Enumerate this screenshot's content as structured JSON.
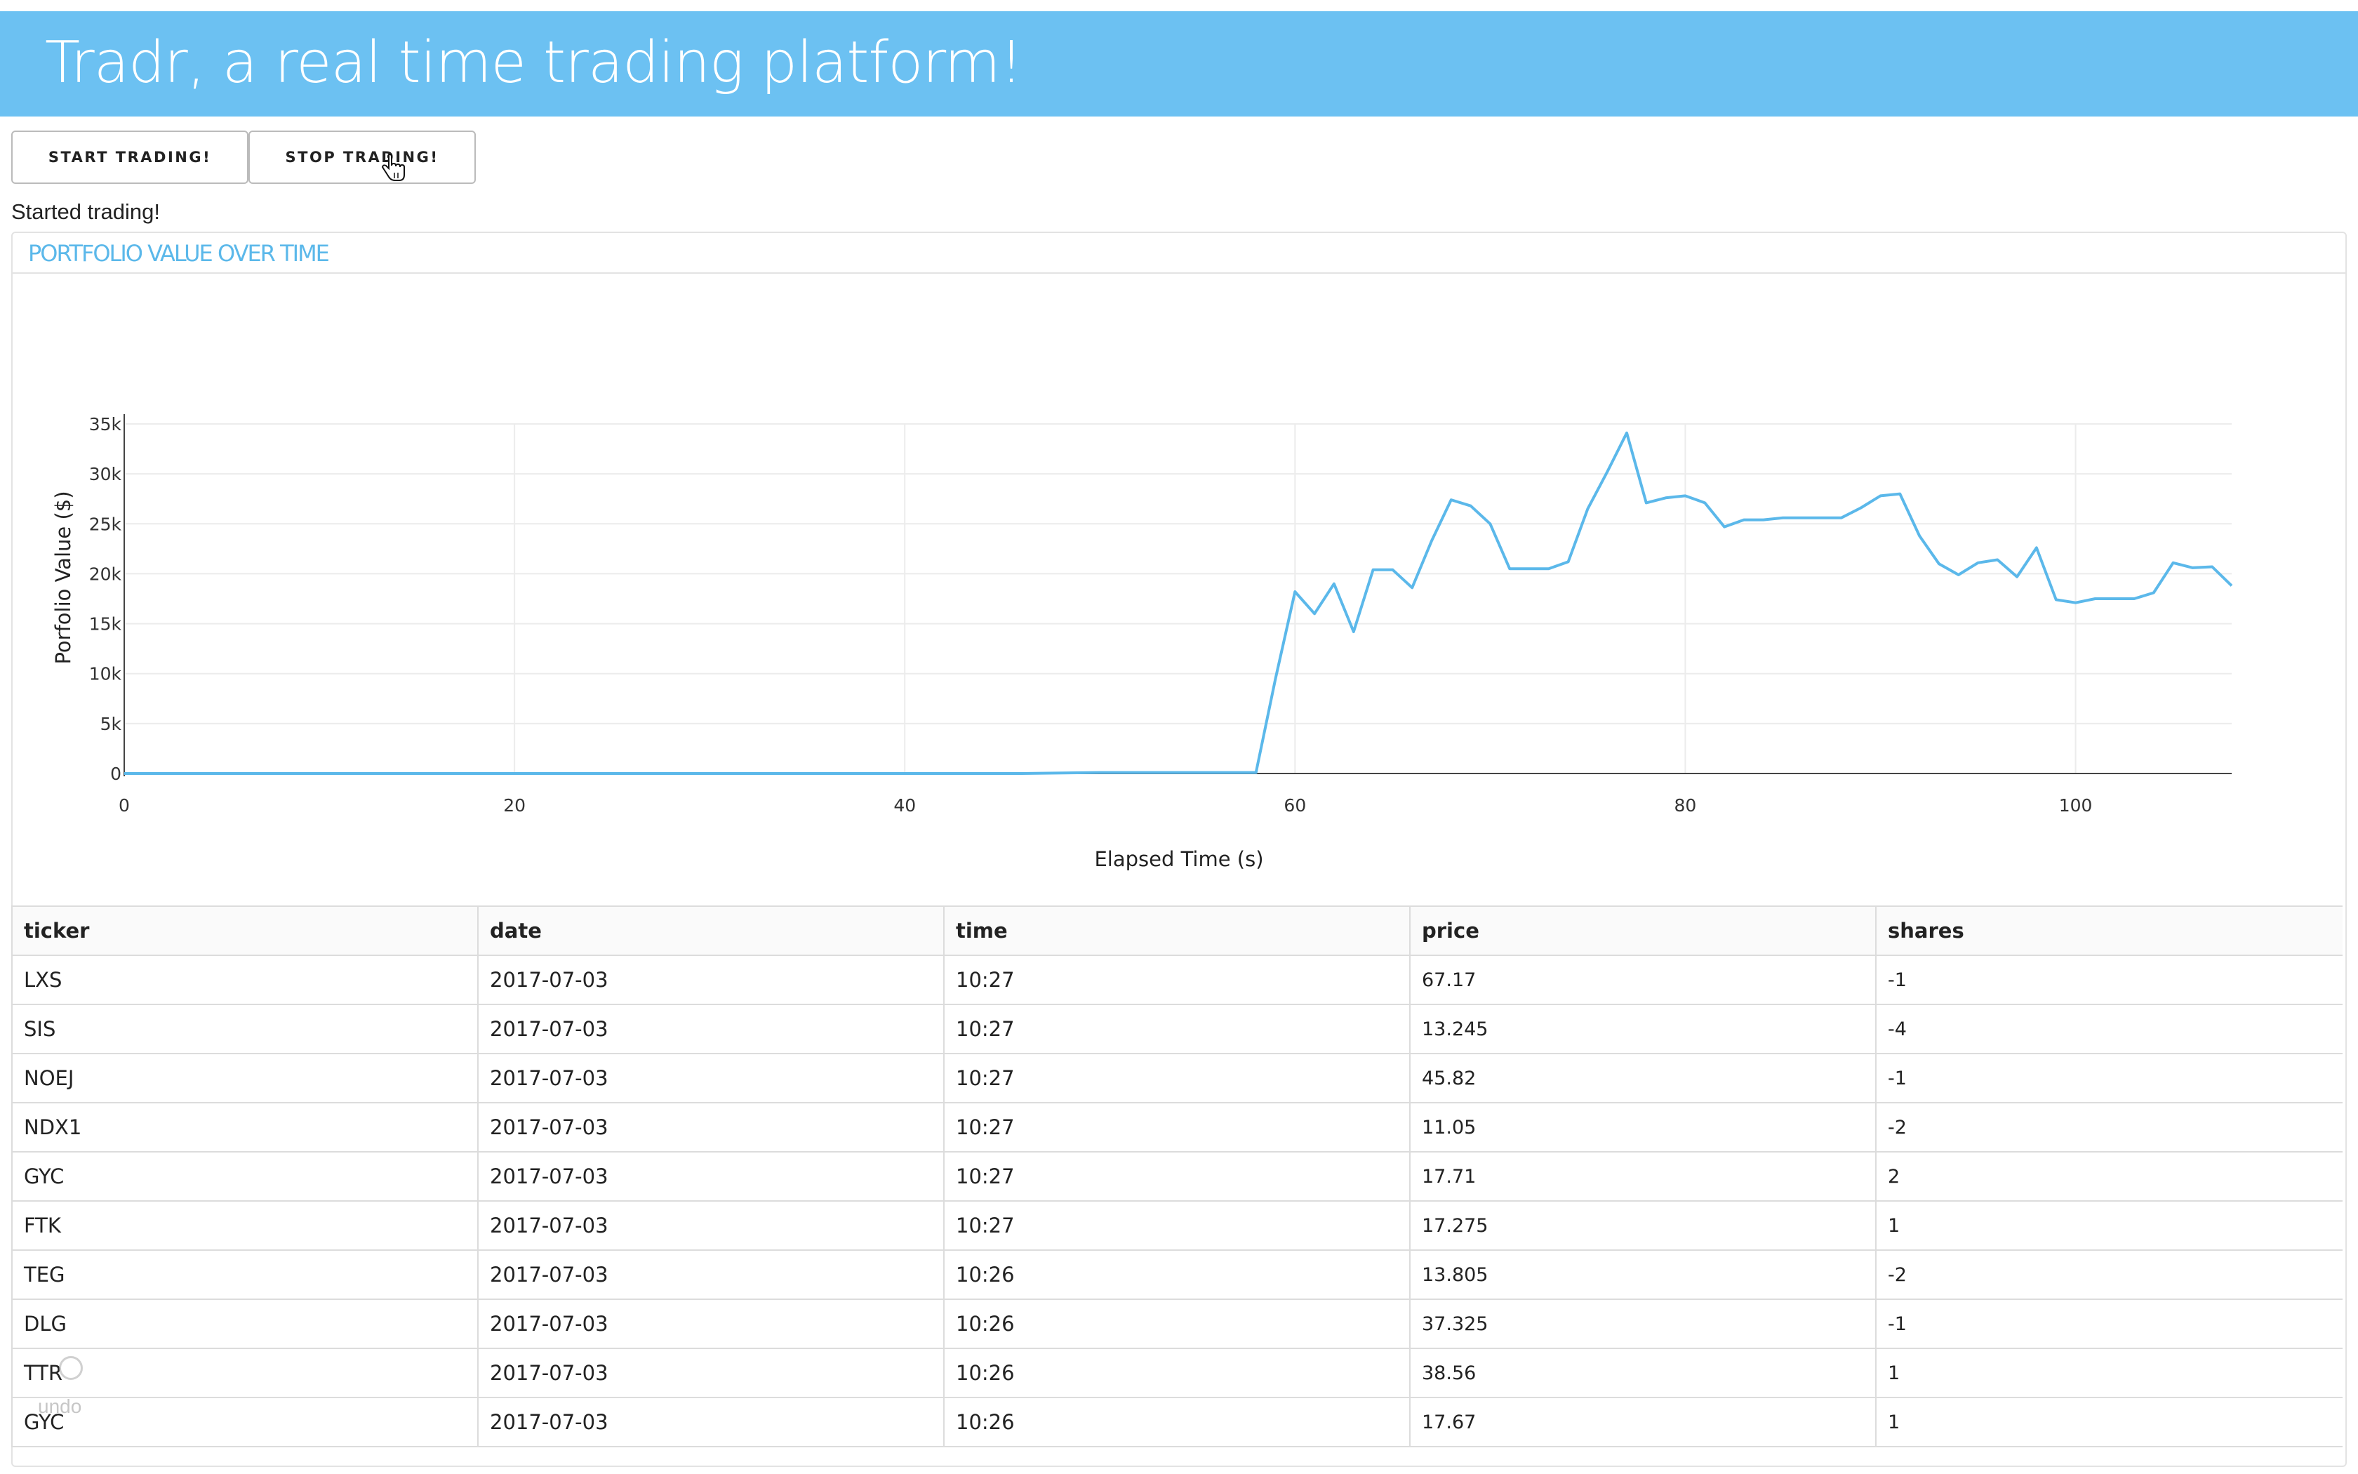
{
  "header": {
    "title": "Tradr, a real time trading platform!"
  },
  "controls": {
    "start_label": "START TRADING!",
    "stop_label": "STOP TRADING!"
  },
  "status": "Started trading!",
  "panel": {
    "title": "PORTFOLIO VALUE OVER TIME"
  },
  "undo": {
    "label": "undo"
  },
  "colors": {
    "banner": "#6cc1f2",
    "line": "#5bb8ea",
    "panel_title": "#5bb8ea"
  },
  "chart_data": {
    "type": "line",
    "title": "",
    "xlabel": "Elapsed Time (s)",
    "ylabel": "Porfolio Value ($)",
    "xlim": [
      0,
      108
    ],
    "ylim": [
      0,
      35000
    ],
    "x_ticks": [
      0,
      20,
      40,
      60,
      80,
      100
    ],
    "x_tick_labels": [
      "0",
      "20",
      "40",
      "60",
      "80",
      "100"
    ],
    "y_ticks": [
      0,
      5000,
      10000,
      15000,
      20000,
      25000,
      30000,
      35000
    ],
    "y_tick_labels": [
      "0",
      "5k",
      "10k",
      "15k",
      "20k",
      "25k",
      "30k",
      "35k"
    ],
    "grid": true,
    "series": [
      {
        "name": "",
        "color": "#5bb8ea",
        "x": [
          0,
          10,
          20,
          30,
          40,
          46,
          50,
          55,
          58,
          59,
          60,
          61,
          62,
          63,
          64,
          65,
          66,
          67,
          68,
          69,
          70,
          71,
          72,
          73,
          74,
          75,
          76,
          77,
          78,
          79,
          80,
          81,
          82,
          83,
          84,
          85,
          86,
          87,
          88,
          89,
          90,
          91,
          92,
          93,
          94,
          95,
          96,
          97,
          98,
          99,
          100,
          101,
          102,
          103,
          104,
          105,
          106,
          107,
          108
        ],
        "y": [
          0,
          0,
          0,
          0,
          0,
          0,
          100,
          100,
          100,
          9500,
          18200,
          16000,
          19000,
          14200,
          20400,
          20400,
          18600,
          23300,
          27400,
          26800,
          25000,
          20500,
          20500,
          20500,
          21200,
          26500,
          30200,
          34100,
          27100,
          27600,
          27800,
          27100,
          24700,
          25400,
          25400,
          25600,
          25600,
          25600,
          25600,
          26600,
          27800,
          28000,
          23800,
          21000,
          19900,
          21100,
          21400,
          19700,
          22600,
          17400,
          17100,
          17500,
          17500,
          17500,
          18100,
          21100,
          20600,
          20700,
          18800
        ]
      }
    ]
  },
  "table": {
    "columns": [
      "ticker",
      "date",
      "time",
      "price",
      "shares"
    ],
    "rows": [
      [
        "LXS",
        "2017-07-03",
        "10:27",
        "67.17",
        "-1"
      ],
      [
        "SIS",
        "2017-07-03",
        "10:27",
        "13.245",
        "-4"
      ],
      [
        "NOEJ",
        "2017-07-03",
        "10:27",
        "45.82",
        "-1"
      ],
      [
        "NDX1",
        "2017-07-03",
        "10:27",
        "11.05",
        "-2"
      ],
      [
        "GYC",
        "2017-07-03",
        "10:27",
        "17.71",
        "2"
      ],
      [
        "FTK",
        "2017-07-03",
        "10:27",
        "17.275",
        "1"
      ],
      [
        "TEG",
        "2017-07-03",
        "10:26",
        "13.805",
        "-2"
      ],
      [
        "DLG",
        "2017-07-03",
        "10:26",
        "37.325",
        "-1"
      ],
      [
        "TTR",
        "2017-07-03",
        "10:26",
        "38.56",
        "1"
      ],
      [
        "GYC",
        "2017-07-03",
        "10:26",
        "17.67",
        "1"
      ]
    ]
  }
}
